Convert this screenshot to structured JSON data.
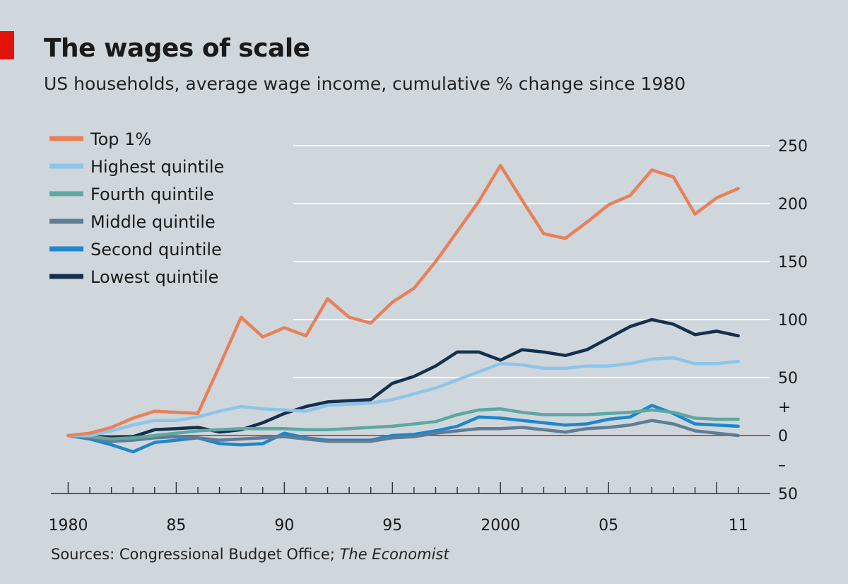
{
  "header": {
    "title": "The wages of scale",
    "subtitle": "US households, average wage income, cumulative % change since 1980"
  },
  "footer": {
    "source_prefix": "Sources: Congressional Budget Office; ",
    "source_italic": "The Economist"
  },
  "colors": {
    "background": "#cfd7dc",
    "accent_red": "#e3120b",
    "gridline": "#ffffff",
    "zero_line": "#e3120b"
  },
  "chart_data": {
    "type": "line",
    "title": "The wages of scale",
    "subtitle": "US households, average wage income, cumulative % change since 1980",
    "x": [
      1980,
      1981,
      1982,
      1983,
      1984,
      1985,
      1986,
      1987,
      1988,
      1989,
      1990,
      1991,
      1992,
      1993,
      1994,
      1995,
      1996,
      1997,
      1998,
      1999,
      2000,
      2001,
      2002,
      2003,
      2004,
      2005,
      2006,
      2007,
      2008,
      2009,
      2010,
      2011
    ],
    "x_tick_labels": [
      {
        "x": 1980,
        "label": "1980"
      },
      {
        "x": 1985,
        "label": "85"
      },
      {
        "x": 1990,
        "label": "90"
      },
      {
        "x": 1995,
        "label": "95"
      },
      {
        "x": 2000,
        "label": "2000"
      },
      {
        "x": 2005,
        "label": "05"
      },
      {
        "x": 2011,
        "label": "11"
      }
    ],
    "y_ticks": [
      {
        "value": 250,
        "label": "250"
      },
      {
        "value": 200,
        "label": "200"
      },
      {
        "value": 150,
        "label": "150"
      },
      {
        "value": 100,
        "label": "100"
      },
      {
        "value": 50,
        "label": "50"
      },
      {
        "value": 0,
        "label": "0"
      },
      {
        "value": -50,
        "label": "50"
      }
    ],
    "y_sign_labels": [
      {
        "value": 25,
        "label": "+"
      },
      {
        "value": -25,
        "label": "–"
      }
    ],
    "ylim": [
      -50,
      250
    ],
    "xlim": [
      1979.2,
      2011.5
    ],
    "grid": true,
    "legend_position": "top-left",
    "series": [
      {
        "name": "Top 1%",
        "color": "#e8805a",
        "values": [
          0,
          2,
          7,
          15,
          21,
          20,
          19,
          60,
          102,
          85,
          93,
          86,
          118,
          102,
          97,
          115,
          127,
          150,
          176,
          202,
          233,
          203,
          174,
          170,
          184,
          199,
          207,
          229,
          223,
          191,
          205,
          213
        ]
      },
      {
        "name": "Highest quintile",
        "color": "#8dc5e8",
        "values": [
          0,
          0,
          4,
          9,
          13,
          13,
          16,
          21,
          25,
          23,
          22,
          21,
          26,
          27,
          28,
          31,
          36,
          41,
          48,
          55,
          62,
          61,
          58,
          58,
          60,
          60,
          62,
          66,
          67,
          62,
          62,
          64
        ]
      },
      {
        "name": "Fourth quintile",
        "color": "#5fa7a1",
        "values": [
          0,
          -1,
          -3,
          -2,
          0,
          2,
          4,
          5,
          6,
          6,
          6,
          5,
          5,
          6,
          7,
          8,
          10,
          12,
          18,
          22,
          23,
          20,
          18,
          18,
          18,
          19,
          20,
          22,
          20,
          15,
          14,
          14
        ]
      },
      {
        "name": "Middle quintile",
        "color": "#5f7d95",
        "values": [
          0,
          -2,
          -5,
          -4,
          -2,
          -1,
          -2,
          -4,
          -3,
          -2,
          -1,
          -3,
          -5,
          -5,
          -5,
          -2,
          -1,
          2,
          4,
          6,
          6,
          7,
          5,
          3,
          6,
          7,
          9,
          13,
          10,
          4,
          2,
          0
        ]
      },
      {
        "name": "Second quintile",
        "color": "#1f86cc",
        "values": [
          0,
          -3,
          -8,
          -14,
          -6,
          -4,
          -2,
          -7,
          -8,
          -7,
          2,
          -2,
          -4,
          -4,
          -4,
          0,
          1,
          4,
          8,
          16,
          15,
          13,
          11,
          9,
          10,
          14,
          16,
          26,
          19,
          10,
          9,
          8
        ]
      },
      {
        "name": "Lowest quintile",
        "color": "#15304d",
        "values": [
          0,
          -1,
          -2,
          -1,
          5,
          6,
          7,
          3,
          5,
          11,
          19,
          25,
          29,
          30,
          31,
          45,
          51,
          60,
          72,
          72,
          65,
          74,
          72,
          69,
          74,
          84,
          94,
          100,
          96,
          87,
          90,
          86
        ]
      }
    ]
  }
}
